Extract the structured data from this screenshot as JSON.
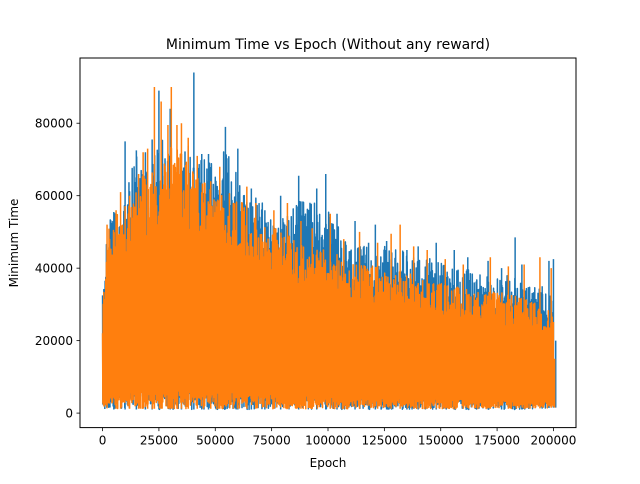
{
  "chart_data": {
    "type": "line",
    "title": "Minimum Time vs Epoch (Without any reward)",
    "xlabel": "Epoch",
    "ylabel": "Minimum Time",
    "xlim": [
      -10000,
      210000
    ],
    "ylim": [
      -4000,
      98000
    ],
    "grid": false,
    "legend": "none",
    "x_ticks": [
      0,
      25000,
      50000,
      75000,
      100000,
      125000,
      150000,
      175000,
      200000
    ],
    "x_tick_labels": [
      "0",
      "25000",
      "50000",
      "75000",
      "100000",
      "125000",
      "150000",
      "175000",
      "200000"
    ],
    "y_ticks": [
      0,
      20000,
      40000,
      60000,
      80000
    ],
    "y_tick_labels": [
      "0",
      "20000",
      "40000",
      "60000",
      "80000"
    ],
    "series": [
      {
        "color": "#1f77b4",
        "envelope": {
          "x": [
            0,
            2000,
            5000,
            10000,
            15000,
            20000,
            25000,
            30000,
            35000,
            40000,
            45000,
            50000,
            55000,
            60000,
            65000,
            70000,
            75000,
            80000,
            90000,
            100000,
            110000,
            125000,
            140000,
            150000,
            165000,
            180000,
            190000,
            200000
          ],
          "low": [
            1200,
            1100,
            1000,
            1000,
            1000,
            1000,
            1000,
            1000,
            1000,
            1000,
            1000,
            1000,
            1000,
            1000,
            1000,
            1000,
            1000,
            1000,
            1000,
            1000,
            1000,
            1000,
            1000,
            1000,
            1000,
            1000,
            1000,
            1500
          ],
          "high": [
            33000,
            52000,
            56000,
            59000,
            73000,
            68000,
            75000,
            76000,
            72000,
            78000,
            72000,
            71000,
            73000,
            66000,
            60000,
            59000,
            55000,
            54000,
            60000,
            56000,
            46000,
            46000,
            44000,
            42000,
            39000,
            38000,
            36000,
            32000
          ]
        },
        "spikes": [
          [
            1000,
            33000
          ],
          [
            5000,
            55500
          ],
          [
            10000,
            75000
          ],
          [
            15000,
            72500
          ],
          [
            19000,
            72000
          ],
          [
            22000,
            75500
          ],
          [
            25000,
            89000
          ],
          [
            30000,
            84000
          ],
          [
            35000,
            71500
          ],
          [
            40500,
            94000
          ],
          [
            44000,
            71500
          ],
          [
            47000,
            71500
          ],
          [
            54500,
            79000
          ],
          [
            60000,
            73000
          ],
          [
            66000,
            62000
          ],
          [
            72000,
            56000
          ],
          [
            79000,
            60000
          ],
          [
            87000,
            65500
          ],
          [
            95000,
            62000
          ],
          [
            99000,
            66000
          ],
          [
            104000,
            55000
          ],
          [
            112000,
            53000
          ],
          [
            118000,
            47000
          ],
          [
            121000,
            52000
          ],
          [
            126000,
            47500
          ],
          [
            135000,
            45000
          ],
          [
            140000,
            46000
          ],
          [
            148000,
            47000
          ],
          [
            156000,
            45000
          ],
          [
            162000,
            43000
          ],
          [
            171000,
            42000
          ],
          [
            177000,
            40000
          ],
          [
            183000,
            48500
          ],
          [
            186000,
            41000
          ],
          [
            195000,
            35000
          ],
          [
            198000,
            42000
          ],
          [
            200000,
            42500
          ],
          [
            201000,
            20000
          ]
        ]
      },
      {
        "color": "#ff7f0e",
        "envelope": {
          "x": [
            0,
            2000,
            5000,
            10000,
            15000,
            20000,
            25000,
            30000,
            35000,
            40000,
            45000,
            50000,
            55000,
            60000,
            65000,
            70000,
            75000,
            80000,
            90000,
            100000,
            110000,
            125000,
            140000,
            150000,
            165000,
            180000,
            190000,
            200000
          ],
          "low": [
            1500,
            1300,
            1200,
            1200,
            1200,
            1200,
            1200,
            1200,
            1200,
            1200,
            1200,
            1200,
            1200,
            1200,
            1200,
            1200,
            1200,
            1200,
            1200,
            1200,
            1200,
            1200,
            1200,
            1200,
            1200,
            1200,
            1200,
            1500
          ],
          "high": [
            30000,
            50000,
            55000,
            57000,
            65000,
            66000,
            70000,
            74000,
            72000,
            68000,
            65000,
            62000,
            61000,
            60000,
            55000,
            53000,
            52000,
            50000,
            46000,
            45000,
            42000,
            40000,
            38000,
            36000,
            34000,
            33000,
            31000,
            28000
          ]
        },
        "spikes": [
          [
            2000,
            52000
          ],
          [
            6000,
            56000
          ],
          [
            8000,
            61000
          ],
          [
            12000,
            60000
          ],
          [
            16000,
            66000
          ],
          [
            18000,
            72000
          ],
          [
            20000,
            73000
          ],
          [
            23000,
            90000
          ],
          [
            26000,
            86000
          ],
          [
            29000,
            79500
          ],
          [
            30500,
            90000
          ],
          [
            33000,
            79500
          ],
          [
            35000,
            80000
          ],
          [
            38000,
            76000
          ],
          [
            42000,
            71000
          ],
          [
            48000,
            64000
          ],
          [
            52000,
            68000
          ],
          [
            58000,
            58000
          ],
          [
            64000,
            62500
          ],
          [
            68000,
            58000
          ],
          [
            76000,
            56000
          ],
          [
            82000,
            58000
          ],
          [
            88000,
            53000
          ],
          [
            93000,
            51000
          ],
          [
            101000,
            55000
          ],
          [
            107000,
            48000
          ],
          [
            114000,
            50000
          ],
          [
            122000,
            47000
          ],
          [
            128000,
            49500
          ],
          [
            132000,
            52000
          ],
          [
            138000,
            46000
          ],
          [
            144000,
            45000
          ],
          [
            152000,
            42500
          ],
          [
            160000,
            41000
          ],
          [
            172000,
            43000
          ],
          [
            180000,
            40500
          ],
          [
            187000,
            41000
          ],
          [
            194000,
            43000
          ],
          [
            199000,
            40000
          ],
          [
            200500,
            15000
          ]
        ]
      }
    ]
  }
}
